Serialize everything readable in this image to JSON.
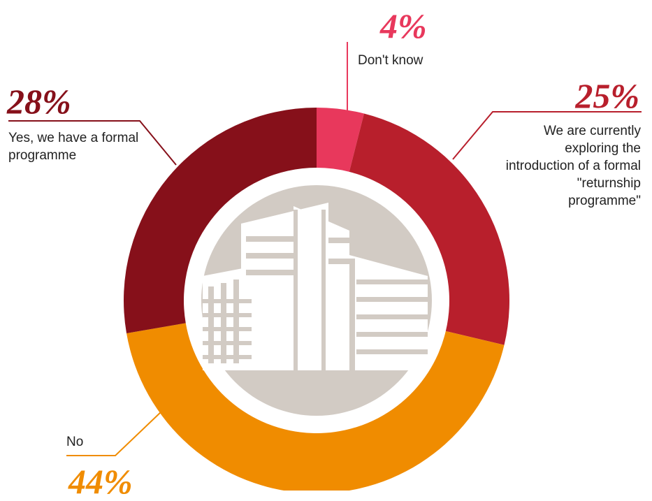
{
  "chart_data": {
    "type": "pie",
    "donut": true,
    "categories": [
      "Don't know",
      "We are currently exploring the introduction of a formal \"returnship programme\"",
      "No",
      "Yes, we have a formal programme"
    ],
    "values": [
      4,
      25,
      44,
      28
    ],
    "value_labels": [
      "4%",
      "25%",
      "44%",
      "28%"
    ],
    "colors": [
      "#e8385c",
      "#b81f2c",
      "#f08c00",
      "#86101a"
    ]
  }
}
